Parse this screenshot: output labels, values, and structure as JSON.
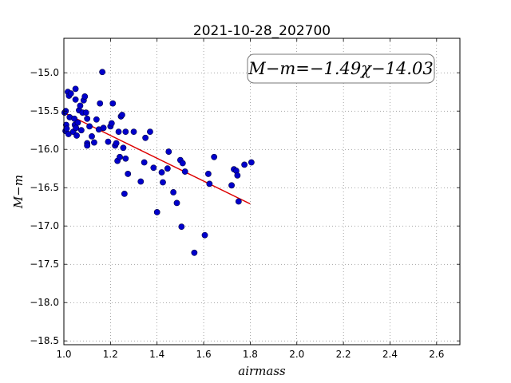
{
  "chart_data": {
    "type": "scatter",
    "title": "2021-10-28_202700",
    "xlabel": "airmass",
    "ylabel": "M−m",
    "xlim": [
      1.0,
      2.7
    ],
    "ylim": [
      -18.55,
      -14.55
    ],
    "xticks": [
      1.0,
      1.2,
      1.4,
      1.6,
      1.8,
      2.0,
      2.2,
      2.4,
      2.6
    ],
    "xtick_labels": [
      "1.0",
      "1.2",
      "1.4",
      "1.6",
      "1.8",
      "2.0",
      "2.2",
      "2.4",
      "2.6"
    ],
    "yticks": [
      -15.0,
      -15.5,
      -16.0,
      -16.5,
      -17.0,
      -17.5,
      -18.0,
      -18.5
    ],
    "ytick_labels": [
      "−15.0",
      "−15.5",
      "−16.0",
      "−16.5",
      "−17.0",
      "−17.5",
      "−18.0",
      "−18.5"
    ],
    "grid": true,
    "annotation": "M−m=−1.49χ−14.03",
    "annotation_position": "top-right",
    "marker_color": "#0000cc",
    "fit_color": "#dd0000",
    "fit": {
      "slope": -1.49,
      "intercept": -14.03,
      "x_range": [
        1.0,
        1.8
      ]
    },
    "points": [
      [
        1.003,
        -15.52
      ],
      [
        1.007,
        -15.76
      ],
      [
        1.008,
        -15.5
      ],
      [
        1.01,
        -15.68
      ],
      [
        1.012,
        -15.73
      ],
      [
        1.017,
        -15.25
      ],
      [
        1.02,
        -15.8
      ],
      [
        1.022,
        -15.3
      ],
      [
        1.025,
        -15.58
      ],
      [
        1.03,
        -15.27
      ],
      [
        1.04,
        -15.77
      ],
      [
        1.045,
        -15.6
      ],
      [
        1.047,
        -15.68
      ],
      [
        1.05,
        -15.21
      ],
      [
        1.05,
        -15.35
      ],
      [
        1.052,
        -15.72
      ],
      [
        1.055,
        -15.82
      ],
      [
        1.06,
        -15.65
      ],
      [
        1.065,
        -15.49
      ],
      [
        1.07,
        -15.43
      ],
      [
        1.075,
        -15.75
      ],
      [
        1.08,
        -15.52
      ],
      [
        1.085,
        -15.36
      ],
      [
        1.09,
        -15.31
      ],
      [
        1.095,
        -15.52
      ],
      [
        1.1,
        -15.92
      ],
      [
        1.1,
        -15.95
      ],
      [
        1.1,
        -15.6
      ],
      [
        1.11,
        -15.7
      ],
      [
        1.12,
        -15.83
      ],
      [
        1.13,
        -15.91
      ],
      [
        1.14,
        -15.61
      ],
      [
        1.15,
        -15.74
      ],
      [
        1.155,
        -15.4
      ],
      [
        1.165,
        -14.99
      ],
      [
        1.17,
        -15.72
      ],
      [
        1.19,
        -15.9
      ],
      [
        1.2,
        -15.7
      ],
      [
        1.205,
        -15.66
      ],
      [
        1.21,
        -15.4
      ],
      [
        1.22,
        -15.95
      ],
      [
        1.225,
        -15.92
      ],
      [
        1.23,
        -16.15
      ],
      [
        1.235,
        -15.77
      ],
      [
        1.24,
        -16.1
      ],
      [
        1.245,
        -15.57
      ],
      [
        1.25,
        -15.55
      ],
      [
        1.255,
        -15.98
      ],
      [
        1.26,
        -16.58
      ],
      [
        1.265,
        -15.77
      ],
      [
        1.265,
        -16.12
      ],
      [
        1.275,
        -16.32
      ],
      [
        1.3,
        -15.77
      ],
      [
        1.33,
        -16.42
      ],
      [
        1.345,
        -16.17
      ],
      [
        1.35,
        -15.85
      ],
      [
        1.37,
        -15.77
      ],
      [
        1.385,
        -16.24
      ],
      [
        1.4,
        -16.82
      ],
      [
        1.42,
        -16.3
      ],
      [
        1.425,
        -16.43
      ],
      [
        1.445,
        -16.25
      ],
      [
        1.45,
        -16.03
      ],
      [
        1.47,
        -16.56
      ],
      [
        1.485,
        -16.7
      ],
      [
        1.5,
        -16.14
      ],
      [
        1.505,
        -17.01
      ],
      [
        1.51,
        -16.18
      ],
      [
        1.52,
        -16.29
      ],
      [
        1.56,
        -17.35
      ],
      [
        1.605,
        -17.12
      ],
      [
        1.62,
        -16.32
      ],
      [
        1.625,
        -16.45
      ],
      [
        1.645,
        -16.1
      ],
      [
        1.72,
        -16.47
      ],
      [
        1.73,
        -16.26
      ],
      [
        1.74,
        -16.28
      ],
      [
        1.745,
        -16.34
      ],
      [
        1.75,
        -16.68
      ],
      [
        1.775,
        -16.2
      ],
      [
        1.805,
        -16.17
      ]
    ]
  }
}
